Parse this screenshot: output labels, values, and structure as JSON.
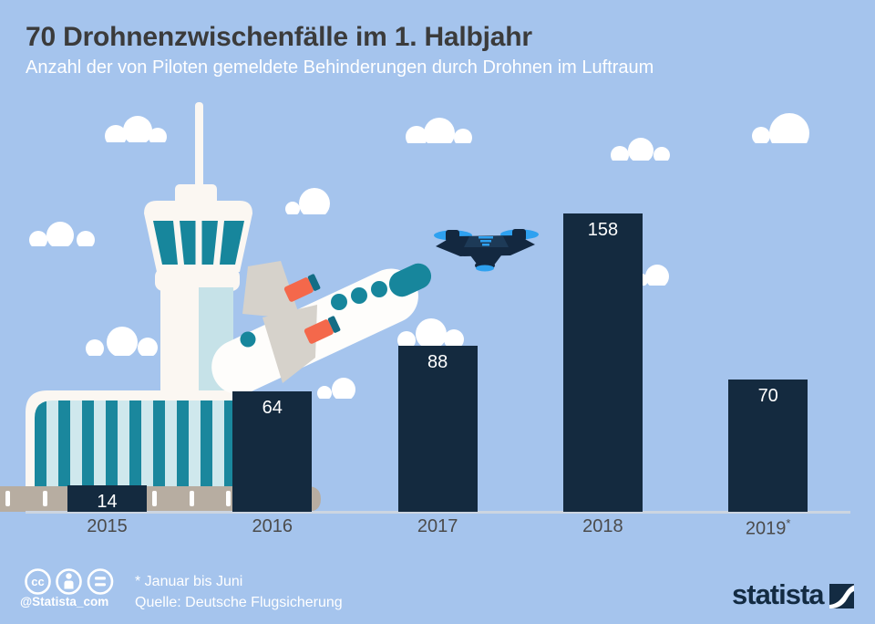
{
  "header": {
    "title": "70 Drohnenzwischenfälle im 1. Halbjahr",
    "subtitle": "Anzahl der von Piloten gemeldete Behinderungen durch Drohnen im Luftraum"
  },
  "chart_data": {
    "type": "bar",
    "categories": [
      "2015",
      "2016",
      "2017",
      "2018",
      "2019*"
    ],
    "values": [
      14,
      64,
      88,
      158,
      70
    ],
    "title": "70 Drohnenzwischenfälle im 1. Halbjahr",
    "subtitle": "Anzahl der von Piloten gemeldete Behinderungen durch Drohnen im Luftraum",
    "value_labels": "inside-top, white",
    "legend": "none",
    "gridlines": "off",
    "baseline": "light gray horizontal axis line"
  },
  "footer": {
    "footnote": "* Januar bis Juni",
    "source": "Quelle: Deutsche Flugsicherung",
    "handle": "@Statista_com",
    "license_icons": [
      "cc-icon",
      "attribution-person-icon",
      "equals-icon"
    ],
    "brand": "statista"
  },
  "illustrations": [
    "clouds",
    "airport-control-tower",
    "terminal-building",
    "runway",
    "airplane",
    "drone"
  ],
  "colors": {
    "sky": "#a5c4ed",
    "bar_navy": "#142a3f",
    "title_gray": "#3b3b3b",
    "axis_label_gray": "#4b4b4b",
    "teal": "#17869c",
    "stripe_light": "#cfe8ed",
    "structure_white": "#fbf7f2",
    "runway_tan": "#b7ada1",
    "engine_orange": "#f4684b",
    "drone_blue": "#2ea1f0",
    "baseline_gray": "#ccd5e1",
    "white": "#ffffff"
  }
}
